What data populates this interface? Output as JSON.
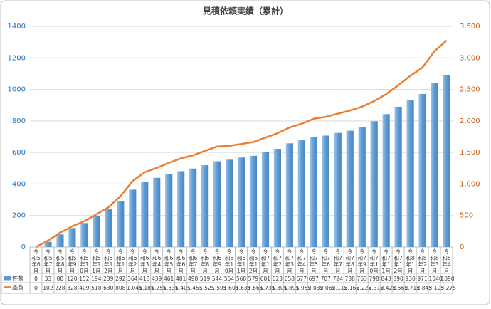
{
  "chart_data": {
    "type": "bar-line",
    "title": "見積依頼実績（累計）",
    "categories": [
      "令和5年6月",
      "令和5年7月",
      "令和5年8月",
      "令和5年9月",
      "令和5年10月",
      "令和5年11月",
      "令和5年12月",
      "令和6年1月",
      "令和6年2月",
      "令和6年3月",
      "令和6年4月",
      "令和6年5月",
      "令和6年6月",
      "令和6年7月",
      "令和6年8月",
      "令和6年9月",
      "令和6年10月",
      "令和6年11月",
      "令和6年12月",
      "令和7年1月",
      "令和7年2月",
      "令和7年3月",
      "令和7年4月",
      "令和7年5月",
      "令和7年6月",
      "令和7年7月",
      "令和7年8月",
      "令和7年9月",
      "令和7年10月",
      "令和7年11月",
      "令和7年12月",
      "令和8年1月",
      "令和8年2月",
      "令和8年3月",
      "令和8年4月"
    ],
    "series": [
      {
        "name": "件数",
        "type": "bar",
        "color": "#5b9bd5",
        "values": [
          0,
          33,
          80,
          120,
          152,
          194,
          239,
          292,
          364,
          413,
          439,
          461,
          481,
          498,
          519,
          544,
          554,
          568,
          579,
          601,
          623,
          658,
          677,
          697,
          707,
          724,
          738,
          763,
          798,
          843,
          890,
          930,
          971,
          1040,
          1090
        ]
      },
      {
        "name": "品数",
        "type": "line",
        "axis": "y2",
        "color": "#ed7d31",
        "values": [
          0,
          102,
          228,
          328,
          409,
          518,
          630,
          808,
          1045,
          1185,
          1255,
          1335,
          1405,
          1455,
          1525,
          1595,
          1605,
          1635,
          1665,
          1735,
          1805,
          1895,
          1955,
          2035,
          2065,
          2115,
          2165,
          2225,
          2315,
          2425,
          2565,
          2715,
          2845,
          3105,
          3275
        ],
        "value_labels": [
          "0",
          "102",
          "228",
          "328",
          "409",
          "518",
          "630",
          "808",
          "1,045",
          "1,185",
          "1,255",
          "1,335",
          "1,405",
          "1,455",
          "1,525",
          "1,595",
          "1,605",
          "1,635",
          "1,665",
          "1,735",
          "1,805",
          "1,895",
          "1,955",
          "2,035",
          "2,065",
          "2,115",
          "2,165",
          "2,225",
          "2,315",
          "2,425",
          "2,565",
          "2,715",
          "2,845",
          "3,105",
          "3,275"
        ]
      }
    ],
    "ylim": [
      0,
      1400
    ],
    "yticks": [
      0,
      200,
      400,
      600,
      800,
      1000,
      1200,
      1400
    ],
    "y2lim": [
      0,
      3500
    ],
    "y2ticks": [
      0,
      500,
      {
        "value": 1000,
        "label": "1,000"
      },
      {
        "value": 1500,
        "label": "1,500"
      },
      {
        "value": 2000,
        "label": "2,000"
      },
      {
        "value": 2500,
        "label": "2,500"
      },
      {
        "value": 3000,
        "label": "3,000"
      },
      {
        "value": 3500,
        "label": "3,500"
      }
    ],
    "grid": true
  }
}
